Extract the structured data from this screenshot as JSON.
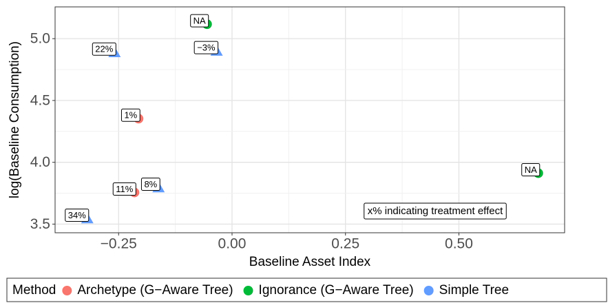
{
  "chart_data": {
    "type": "scatter",
    "x_label": "Baseline Asset Index",
    "y_label": "log(Baseline Consumption)",
    "annotation": "x% indicating treatment effect",
    "legend_title": "Method",
    "legend_position": "bottom",
    "grid": true,
    "xlim": [
      -0.39,
      0.733
    ],
    "xticks": [
      {
        "value": -0.25,
        "label": "−0.25"
      },
      {
        "value": 0,
        "label": "0.00"
      },
      {
        "value": 0.25,
        "label": "0.25"
      },
      {
        "value": 0.5,
        "label": "0.50"
      }
    ],
    "ylim": [
      3.43,
      5.257
    ],
    "yticks": [
      {
        "value": 3.5,
        "label": "3.5"
      },
      {
        "value": 4,
        "label": "4.0"
      },
      {
        "value": 4.5,
        "label": "4.5"
      },
      {
        "value": 5,
        "label": "5.0"
      }
    ],
    "series": [
      {
        "name": "Archetype (G−Aware Tree)",
        "color": "#F8766D",
        "marker": "circle",
        "x": [
          -0.206,
          -0.215
        ],
        "values": [
          4.353,
          3.756
        ],
        "labels": [
          "1%",
          "11%"
        ]
      },
      {
        "name": "Ignorance (G−Aware Tree)",
        "color": "#00BA38",
        "marker": "circle",
        "x": [
          -0.055,
          0.675
        ],
        "values": [
          5.117,
          3.912
        ],
        "labels": [
          "NA",
          "NA"
        ]
      },
      {
        "name": "Simple Tree",
        "color": "#619CFF",
        "marker": "triangle",
        "x": [
          -0.259,
          -0.034,
          -0.162,
          -0.319
        ],
        "values": [
          4.888,
          4.9,
          3.795,
          3.544
        ],
        "labels": [
          "22%",
          "−3%",
          "8%",
          "34%"
        ]
      }
    ]
  }
}
